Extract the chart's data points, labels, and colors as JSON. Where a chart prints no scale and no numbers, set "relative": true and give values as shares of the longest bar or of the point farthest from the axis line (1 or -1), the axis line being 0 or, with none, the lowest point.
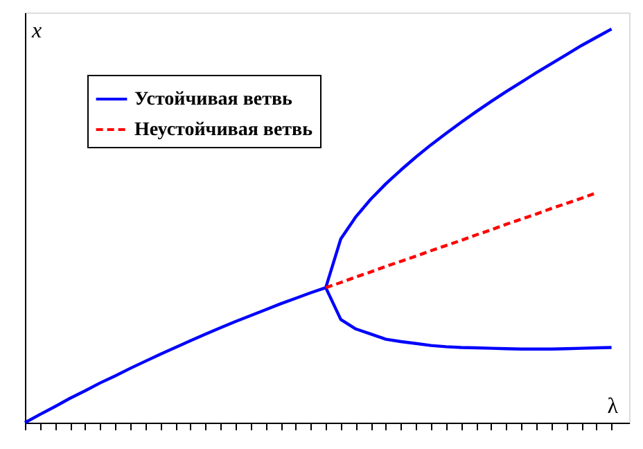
{
  "chart_data": {
    "type": "line",
    "relative": true,
    "xlabel": "λ",
    "ylabel": "x",
    "grid": false,
    "legend": "top left",
    "marker": "none",
    "categories": [
      null,
      null,
      null,
      null,
      null,
      null,
      null,
      null,
      null,
      null,
      null,
      null,
      null,
      null,
      null,
      null,
      null,
      null,
      null,
      null,
      null,
      null,
      null,
      null,
      null,
      null,
      null,
      null,
      null,
      null,
      null,
      null,
      null,
      null,
      null,
      null,
      null,
      null,
      null,
      null
    ],
    "series": [
      {
        "name": "Устойчивая ветвь",
        "color": "#0000ff",
        "line_style": "solid",
        "values": [
          0,
          0.021,
          0.041,
          0.062,
          0.081,
          0.101,
          0.119,
          0.138,
          0.156,
          0.174,
          0.191,
          0.208,
          0.225,
          0.241,
          0.257,
          0.272,
          0.287,
          0.302,
          0.316,
          0.33,
          0.343,
          0.467,
          0.523,
          0.568,
          0.607,
          0.642,
          0.675,
          0.706,
          0.735,
          0.763,
          0.79,
          0.816,
          0.841,
          0.865,
          0.889,
          0.912,
          0.935,
          0.958,
          0.979,
          1
        ]
      },
      {
        "color": "#0000ff",
        "line_style": "solid",
        "values": [
          null,
          null,
          null,
          null,
          null,
          null,
          null,
          null,
          null,
          null,
          null,
          null,
          null,
          null,
          null,
          null,
          null,
          null,
          null,
          null,
          0.343,
          0.262,
          0.238,
          0.225,
          0.212,
          0.206,
          0.201,
          0.196,
          0.193,
          0.191,
          0.19,
          0.189,
          0.188,
          0.187,
          0.187,
          0.187,
          0.188,
          0.189,
          0.19,
          0.191
        ]
      },
      {
        "name": "Неустойчивая ветвь",
        "color": "#ff0000",
        "line_style": "dashed",
        "values": [
          null,
          null,
          null,
          null,
          null,
          null,
          null,
          null,
          null,
          null,
          null,
          null,
          null,
          null,
          null,
          null,
          null,
          null,
          null,
          null,
          0.343,
          0.356,
          0.37,
          0.383,
          0.397,
          0.41,
          0.423,
          0.437,
          0.45,
          0.463,
          0.477,
          0.49,
          0.504,
          0.517,
          0.53,
          0.544,
          0.557,
          0.57,
          0.584,
          null
        ]
      }
    ]
  }
}
